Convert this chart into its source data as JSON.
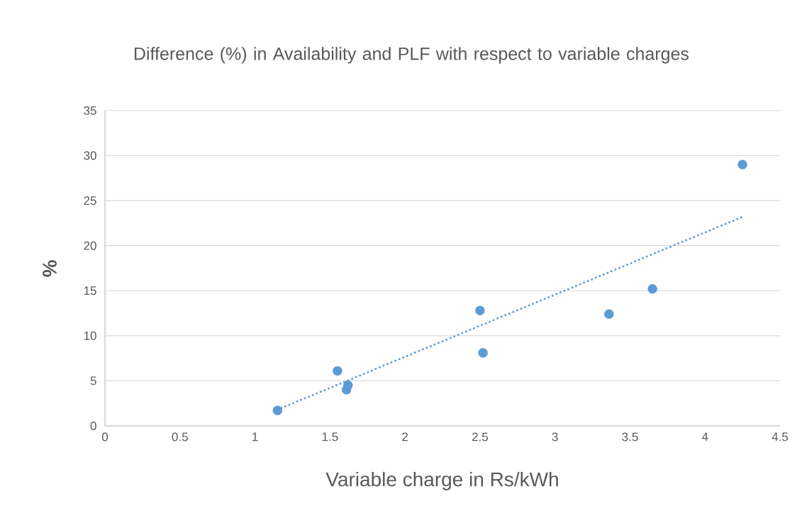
{
  "chart_data": {
    "type": "scatter",
    "title": "Difference (%)  in Availability and PLF with respect to variable charges",
    "xlabel": "Variable charge in Rs/kWh",
    "ylabel": "%",
    "xlim": [
      0,
      4.5
    ],
    "ylim": [
      0,
      35
    ],
    "xticks": [
      0,
      0.5,
      1,
      1.5,
      2,
      2.5,
      3,
      3.5,
      4,
      4.5
    ],
    "yticks": [
      0,
      5,
      10,
      15,
      20,
      25,
      30,
      35
    ],
    "grid": "y",
    "series": [
      {
        "x": [
          1.15,
          1.55,
          1.61,
          1.62,
          2.5,
          2.52,
          3.36,
          3.65,
          4.25
        ],
        "values": [
          1.7,
          6.1,
          4.0,
          4.5,
          12.8,
          8.1,
          12.4,
          15.2,
          29.0
        ],
        "color": "#5b9bd5",
        "marker": "circle"
      },
      {
        "type": "line",
        "x": [
          1.15,
          4.25
        ],
        "values": [
          1.8,
          23.2
        ],
        "color": "#5b9bd5",
        "line_style": "dotted",
        "marker": "none"
      }
    ]
  }
}
